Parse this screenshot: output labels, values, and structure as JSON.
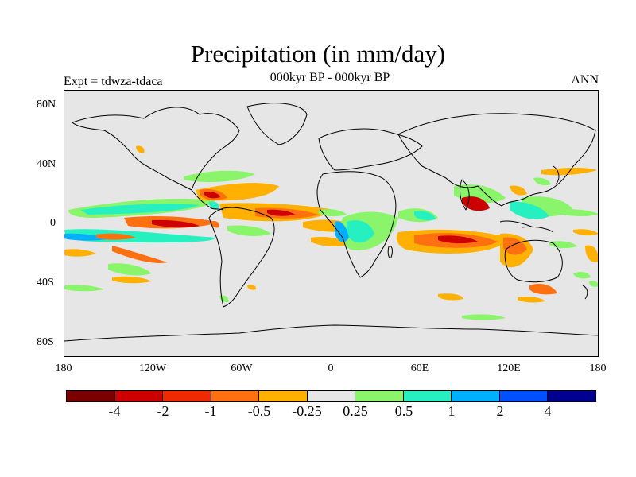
{
  "title": "Precipitation (in mm/day)",
  "subtitle": "000kyr BP - 000kyr BP",
  "left_label": "Expt = tdwza-tdaca",
  "right_label": "ANN",
  "y_ticks": [
    "80N",
    "40N",
    "0",
    "40S",
    "80S"
  ],
  "x_ticks": [
    "180",
    "120W",
    "60W",
    "0",
    "60E",
    "120E",
    "180"
  ],
  "colorbar": {
    "colors": [
      "#7a0000",
      "#cc0000",
      "#f02a00",
      "#ff7010",
      "#ffb000",
      "#e6e6e6",
      "#8af56a",
      "#27f0c0",
      "#00b0ff",
      "#0050ff",
      "#000090"
    ],
    "labels": [
      "-4",
      "-2",
      "-1",
      "-0.5",
      "-0.25",
      "0.25",
      "0.5",
      "1",
      "2",
      "4"
    ]
  }
}
